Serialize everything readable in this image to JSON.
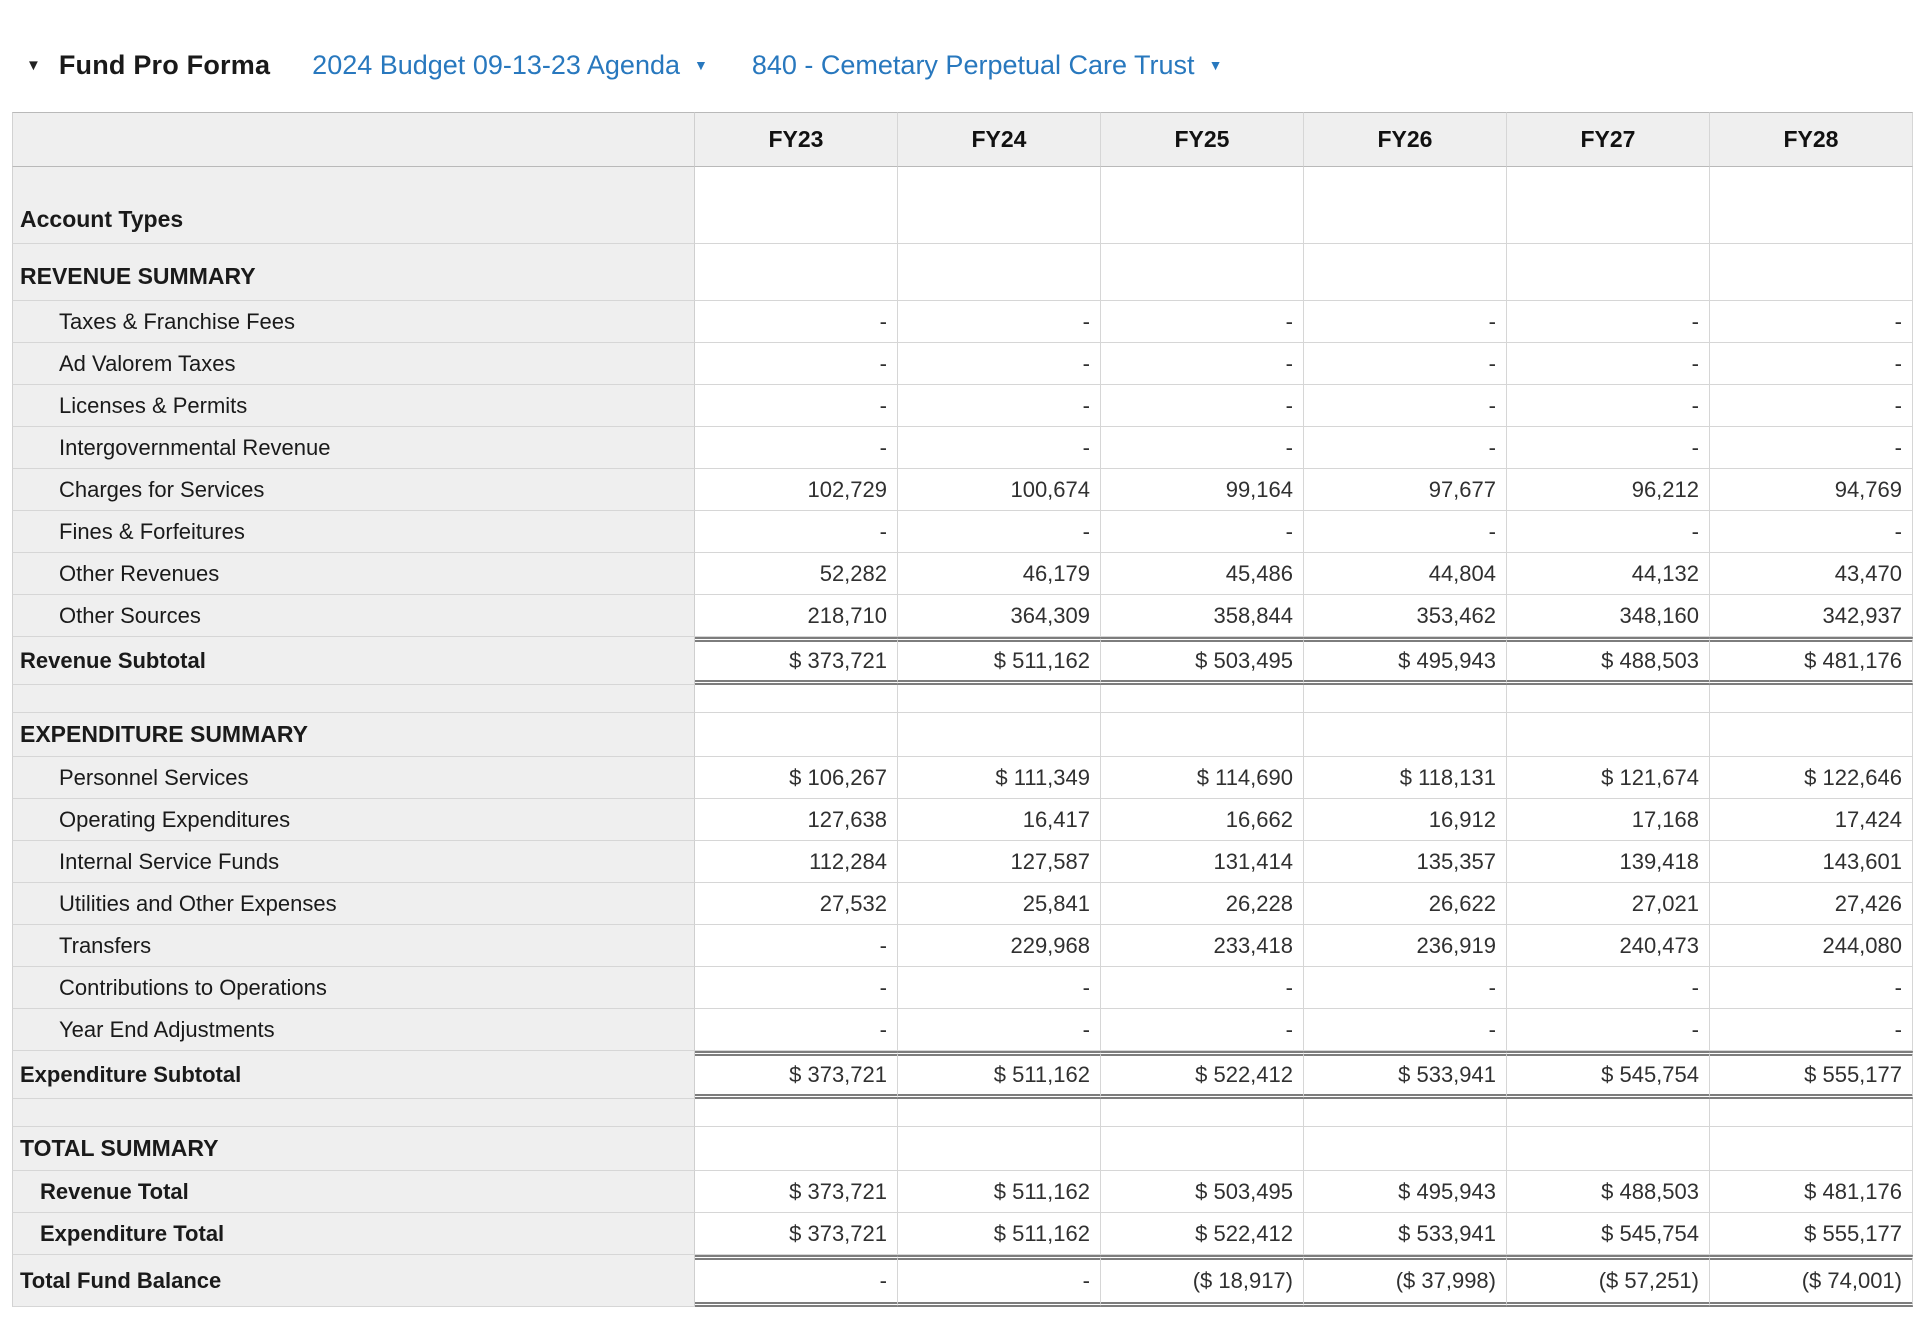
{
  "header": {
    "title": "Fund Pro Forma",
    "budget_dropdown": {
      "label": "2024 Budget 09-13-23 Agenda"
    },
    "fund_dropdown": {
      "label": "840 - Cemetary Perpetual Care Trust"
    }
  },
  "icons": {
    "collapse_caret": "▼",
    "dropdown_caret": "▼"
  },
  "colors": {
    "link_blue": "#2878be",
    "label_column_bg": "#efefef",
    "double_rule": "#7d7d7d"
  },
  "table": {
    "columns": [
      "FY23",
      "FY24",
      "FY25",
      "FY26",
      "FY27",
      "FY28"
    ],
    "rows": [
      {
        "label": "Account Types",
        "type": "section-tall",
        "values": [
          "",
          "",
          "",
          "",
          "",
          ""
        ]
      },
      {
        "label": "REVENUE SUMMARY",
        "type": "section",
        "values": [
          "",
          "",
          "",
          "",
          "",
          ""
        ]
      },
      {
        "label": "Taxes & Franchise Fees",
        "type": "item",
        "values": [
          "-",
          "-",
          "-",
          "-",
          "-",
          "-"
        ]
      },
      {
        "label": "Ad Valorem Taxes",
        "type": "item",
        "values": [
          "-",
          "-",
          "-",
          "-",
          "-",
          "-"
        ]
      },
      {
        "label": "Licenses & Permits",
        "type": "item",
        "values": [
          "-",
          "-",
          "-",
          "-",
          "-",
          "-"
        ]
      },
      {
        "label": "Intergovernmental Revenue",
        "type": "item",
        "values": [
          "-",
          "-",
          "-",
          "-",
          "-",
          "-"
        ]
      },
      {
        "label": "Charges for Services",
        "type": "item",
        "values": [
          "102,729",
          "100,674",
          "99,164",
          "97,677",
          "96,212",
          "94,769"
        ]
      },
      {
        "label": "Fines & Forfeitures",
        "type": "item",
        "values": [
          "-",
          "-",
          "-",
          "-",
          "-",
          "-"
        ]
      },
      {
        "label": "Other Revenues",
        "type": "item",
        "values": [
          "52,282",
          "46,179",
          "45,486",
          "44,804",
          "44,132",
          "43,470"
        ]
      },
      {
        "label": "Other Sources",
        "type": "item",
        "values": [
          "218,710",
          "364,309",
          "358,844",
          "353,462",
          "348,160",
          "342,937"
        ]
      },
      {
        "label": "Revenue Subtotal",
        "type": "subtotal",
        "values": [
          "$ 373,721",
          "$ 511,162",
          "$ 503,495",
          "$ 495,943",
          "$ 488,503",
          "$ 481,176"
        ]
      },
      {
        "label": "",
        "type": "spacer",
        "values": [
          "",
          "",
          "",
          "",
          "",
          ""
        ]
      },
      {
        "label": "EXPENDITURE SUMMARY",
        "type": "section-sm",
        "values": [
          "",
          "",
          "",
          "",
          "",
          ""
        ]
      },
      {
        "label": "Personnel Services",
        "type": "item",
        "values": [
          "$ 106,267",
          "$ 111,349",
          "$ 114,690",
          "$ 118,131",
          "$ 121,674",
          "$ 122,646"
        ]
      },
      {
        "label": "Operating Expenditures",
        "type": "item",
        "values": [
          "127,638",
          "16,417",
          "16,662",
          "16,912",
          "17,168",
          "17,424"
        ]
      },
      {
        "label": "Internal Service Funds",
        "type": "item",
        "values": [
          "112,284",
          "127,587",
          "131,414",
          "135,357",
          "139,418",
          "143,601"
        ]
      },
      {
        "label": "Utilities and Other Expenses",
        "type": "item",
        "values": [
          "27,532",
          "25,841",
          "26,228",
          "26,622",
          "27,021",
          "27,426"
        ]
      },
      {
        "label": "Transfers",
        "type": "item",
        "values": [
          "-",
          "229,968",
          "233,418",
          "236,919",
          "240,473",
          "244,080"
        ]
      },
      {
        "label": "Contributions to Operations",
        "type": "item",
        "values": [
          "-",
          "-",
          "-",
          "-",
          "-",
          "-"
        ]
      },
      {
        "label": "Year End Adjustments",
        "type": "item",
        "values": [
          "-",
          "-",
          "-",
          "-",
          "-",
          "-"
        ]
      },
      {
        "label": "Expenditure Subtotal",
        "type": "subtotal",
        "values": [
          "$ 373,721",
          "$ 511,162",
          "$ 522,412",
          "$ 533,941",
          "$ 545,754",
          "$ 555,177"
        ]
      },
      {
        "label": "",
        "type": "spacer",
        "values": [
          "",
          "",
          "",
          "",
          "",
          ""
        ]
      },
      {
        "label": "TOTAL SUMMARY",
        "type": "section-sm",
        "values": [
          "",
          "",
          "",
          "",
          "",
          ""
        ]
      },
      {
        "label": "Revenue Total",
        "type": "total",
        "values": [
          "$ 373,721",
          "$ 511,162",
          "$ 503,495",
          "$ 495,943",
          "$ 488,503",
          "$ 481,176"
        ]
      },
      {
        "label": "Expenditure Total",
        "type": "total",
        "values": [
          "$ 373,721",
          "$ 511,162",
          "$ 522,412",
          "$ 533,941",
          "$ 545,754",
          "$ 555,177"
        ]
      },
      {
        "label": "Total Fund Balance",
        "type": "grand",
        "values": [
          "-",
          "-",
          "($ 18,917)",
          "($ 37,998)",
          "($ 57,251)",
          "($ 74,001)"
        ]
      }
    ]
  }
}
